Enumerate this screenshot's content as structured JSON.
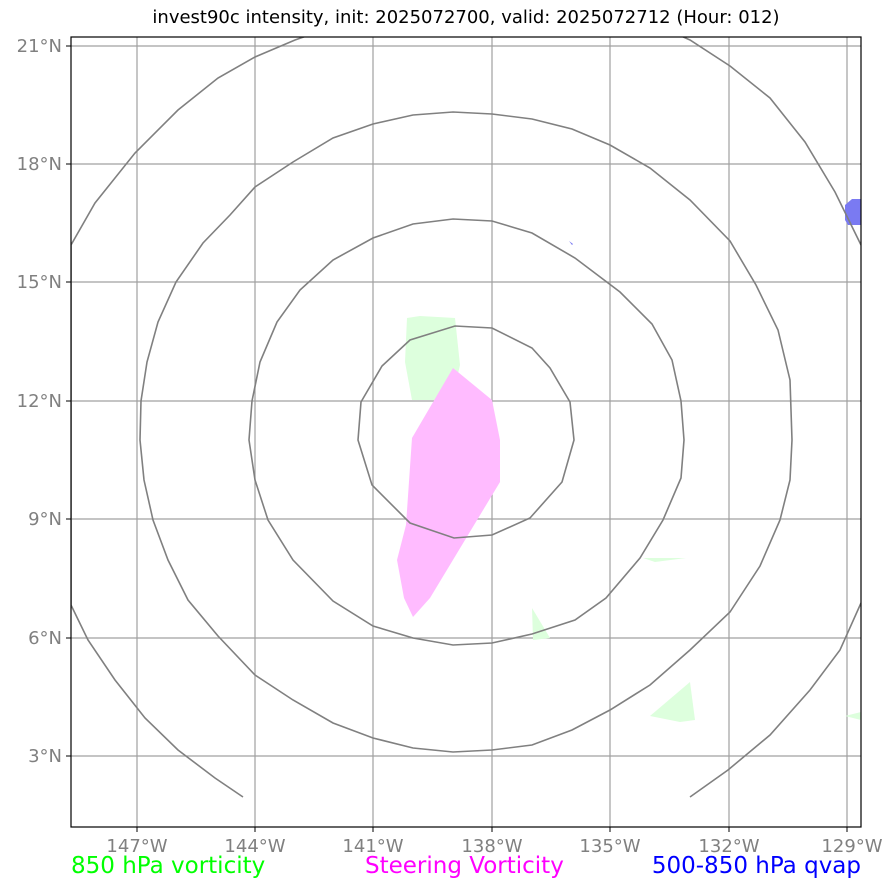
{
  "title": "invest90c intensity, init: 2025072700, valid: 2025072712 (Hour: 012)",
  "legend": {
    "vorticity_850": "850 hPa vorticity",
    "steering": "Steering Vorticity",
    "qvap": "500-850 hPa qvap"
  },
  "colors": {
    "vorticity_850": "#00ff00",
    "vorticity_850_fill": "#ddffdd",
    "steering": "#ff00ff",
    "steering_fill": "#ffbbff",
    "qvap": "#0000ff",
    "qvap_fill": "#7a7af2",
    "rings": "#808080",
    "grid": "#a0a0a0"
  },
  "map": {
    "lon_ticks": [
      "147°W",
      "144°W",
      "141°W",
      "138°W",
      "135°W",
      "132°W",
      "129°W"
    ],
    "lat_ticks": [
      "21°N",
      "18°N",
      "15°N",
      "12°N",
      "9°N",
      "6°N",
      "3°N"
    ]
  }
}
